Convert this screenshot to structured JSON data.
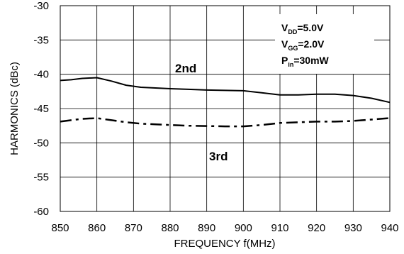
{
  "chart_data": {
    "type": "line",
    "xlabel": "FREQUENCY f(MHz)",
    "ylabel": "HARMONICS (dBc)",
    "xlim": [
      850,
      940
    ],
    "ylim": [
      -60,
      -30
    ],
    "x_ticks": [
      850,
      860,
      870,
      880,
      890,
      900,
      910,
      920,
      930,
      940
    ],
    "y_ticks": [
      -30,
      -35,
      -40,
      -45,
      -50,
      -55,
      -60
    ],
    "grid": true,
    "series": [
      {
        "name": "2nd",
        "line_style": "solid",
        "x": [
          850,
          853,
          856,
          860,
          864,
          868,
          872,
          876,
          880,
          885,
          890,
          895,
          900,
          905,
          910,
          915,
          920,
          925,
          930,
          935,
          940
        ],
        "y": [
          -40.9,
          -40.8,
          -40.6,
          -40.5,
          -41.0,
          -41.6,
          -41.9,
          -42.0,
          -42.1,
          -42.2,
          -42.3,
          -42.35,
          -42.4,
          -42.7,
          -43.0,
          -43.0,
          -42.9,
          -42.9,
          -43.1,
          -43.5,
          -44.1
        ]
      },
      {
        "name": "3rd",
        "line_style": "dash-dot",
        "x": [
          850,
          853,
          856,
          860,
          864,
          868,
          872,
          876,
          880,
          885,
          890,
          895,
          900,
          905,
          910,
          915,
          920,
          925,
          930,
          935,
          940
        ],
        "y": [
          -46.9,
          -46.7,
          -46.5,
          -46.4,
          -46.7,
          -47.0,
          -47.2,
          -47.3,
          -47.4,
          -47.5,
          -47.55,
          -47.6,
          -47.6,
          -47.4,
          -47.1,
          -47.0,
          -46.9,
          -46.9,
          -46.8,
          -46.6,
          -46.4
        ]
      }
    ],
    "annotations": {
      "label_2nd": "2nd",
      "label_3rd": "3rd",
      "conditions": [
        {
          "base": "V",
          "sub": "DD",
          "rest": "=5.0V"
        },
        {
          "base": "V",
          "sub": "GG",
          "rest": "=2.0V"
        },
        {
          "base": "P",
          "sub": "in",
          "rest": "=30mW"
        }
      ]
    }
  }
}
